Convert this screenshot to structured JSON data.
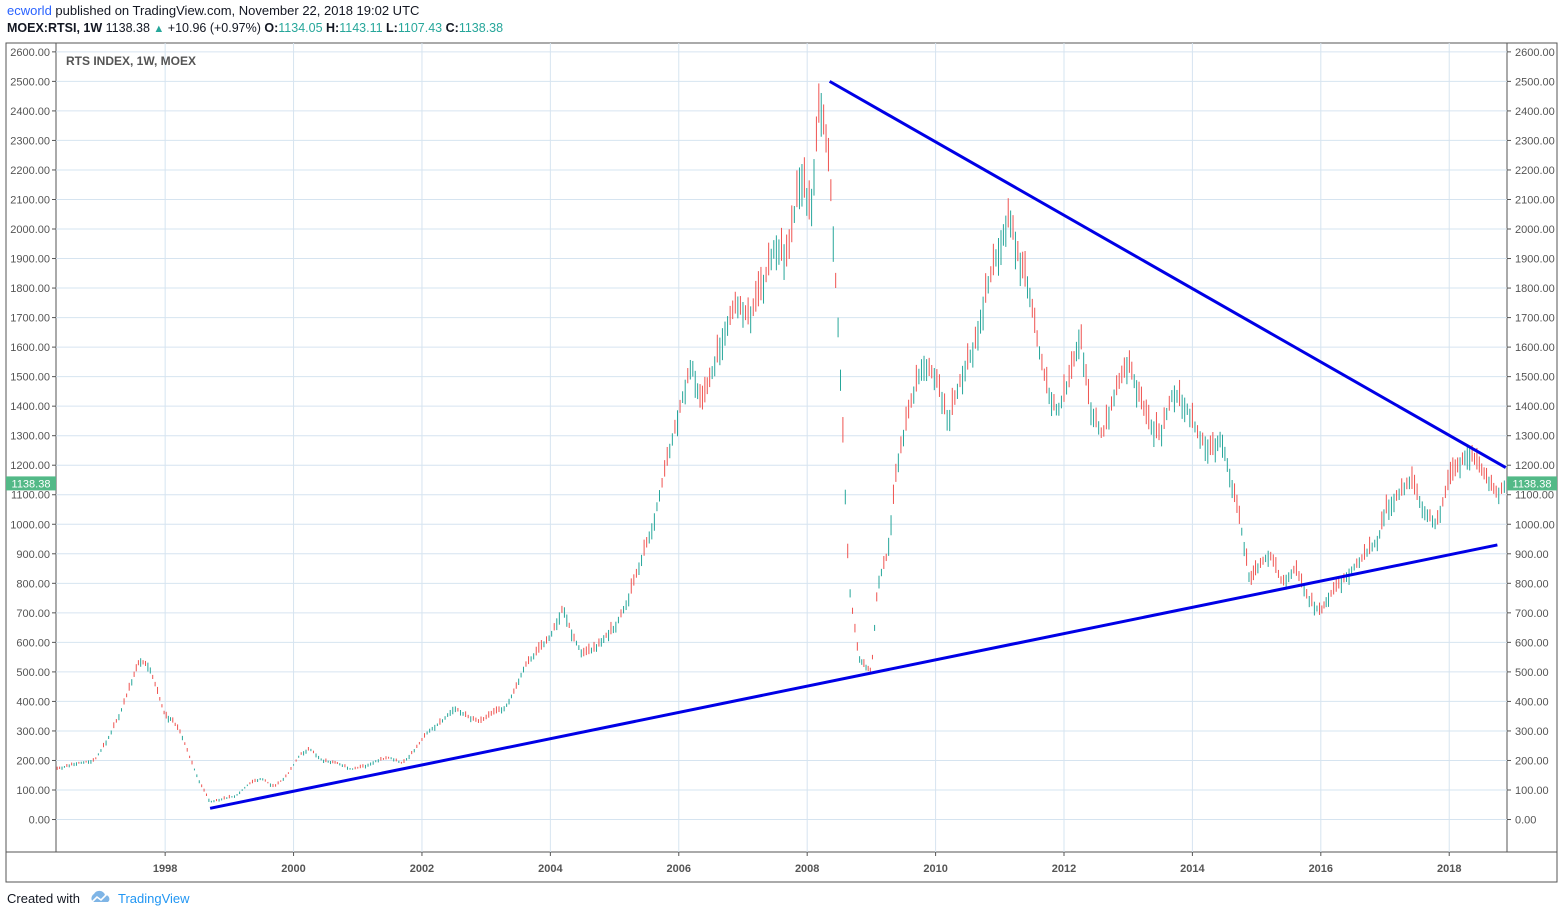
{
  "header": {
    "author": "ecworld",
    "published": "published on TradingView.com, November 22, 2018 19:02 UTC",
    "symbol": "MOEX:RTSI, 1W",
    "last": "1138.38",
    "change": "+10.96 (+0.97%)",
    "o_label": "O:",
    "o_value": "1134.05",
    "h_label": "H:",
    "h_value": "1143.11",
    "l_label": "L:",
    "l_value": "1107.43",
    "c_label": "C:",
    "c_value": "1138.38"
  },
  "footer": {
    "created": "Created with",
    "brand": "TradingView"
  },
  "colors": {
    "up": "#26a69a",
    "down": "#ef5350",
    "trendline": "#0000e6",
    "grid": "#d6e4f0",
    "price_badge": "#53b987"
  },
  "chart_data": {
    "type": "line",
    "title": "RTS INDEX, 1W, MOEX",
    "xlabel": "",
    "ylabel": "",
    "x_ticks": [
      "1998",
      "2000",
      "2002",
      "2004",
      "2006",
      "2008",
      "2010",
      "2012",
      "2014",
      "2016",
      "2018"
    ],
    "y_ticks": [
      "0.00",
      "100.00",
      "200.00",
      "300.00",
      "400.00",
      "500.00",
      "600.00",
      "700.00",
      "800.00",
      "900.00",
      "1000.00",
      "1100.00",
      "1200.00",
      "1300.00",
      "1400.00",
      "1500.00",
      "1600.00",
      "1700.00",
      "1800.00",
      "1900.00",
      "2000.00",
      "2100.00",
      "2200.00",
      "2300.00",
      "2400.00",
      "2500.00",
      "2600.00"
    ],
    "ylim": [
      -110,
      2630
    ],
    "xlim": [
      1996.3,
      2018.9
    ],
    "last_price_label": "1138.38",
    "series": [
      {
        "x": [
          1996.3,
          1996.6,
          1996.9,
          1997.1,
          1997.3,
          1997.5,
          1997.6,
          1997.75,
          1997.9,
          1998.0,
          1998.1,
          1998.25,
          1998.4,
          1998.55,
          1998.7,
          1998.9,
          1999.1,
          1999.3,
          1999.5,
          1999.7,
          1999.9,
          2000.1,
          2000.25,
          2000.45,
          2000.7,
          2000.9,
          2001.1,
          2001.3,
          2001.5,
          2001.7,
          2001.9,
          2002.1,
          2002.3,
          2002.5,
          2002.7,
          2002.9,
          2003.1,
          2003.3,
          2003.45,
          2003.6,
          2003.8,
          2004.0,
          2004.2,
          2004.35,
          2004.5,
          2004.7,
          2004.85,
          2005.0,
          2005.2,
          2005.4,
          2005.6,
          2005.8,
          2006.0,
          2006.2,
          2006.35,
          2006.5,
          2006.7,
          2006.9,
          2007.1,
          2007.3,
          2007.5,
          2007.7,
          2007.9,
          2008.05,
          2008.2,
          2008.35,
          2008.5,
          2008.65,
          2008.8,
          2008.9,
          2009.0,
          2009.1,
          2009.25,
          2009.4,
          2009.6,
          2009.8,
          2010.0,
          2010.2,
          2010.4,
          2010.6,
          2010.8,
          2011.0,
          2011.15,
          2011.3,
          2011.45,
          2011.6,
          2011.75,
          2011.9,
          2012.1,
          2012.25,
          2012.4,
          2012.6,
          2012.8,
          2013.0,
          2013.15,
          2013.3,
          2013.5,
          2013.7,
          2013.9,
          2014.1,
          2014.3,
          2014.45,
          2014.6,
          2014.75,
          2014.9,
          2015.0,
          2015.2,
          2015.4,
          2015.6,
          2015.8,
          2016.0,
          2016.1,
          2016.3,
          2016.5,
          2016.7,
          2016.9,
          2017.0,
          2017.2,
          2017.4,
          2017.6,
          2017.8,
          2018.0,
          2018.15,
          2018.3,
          2018.45,
          2018.6,
          2018.75,
          2018.88
        ],
        "y": [
          170,
          190,
          200,
          270,
          360,
          480,
          540,
          520,
          420,
          350,
          340,
          290,
          200,
          120,
          60,
          70,
          80,
          120,
          140,
          110,
          150,
          220,
          240,
          200,
          190,
          170,
          180,
          200,
          210,
          190,
          240,
          300,
          330,
          380,
          350,
          330,
          360,
          380,
          440,
          520,
          570,
          620,
          720,
          620,
          560,
          580,
          620,
          650,
          740,
          870,
          1000,
          1200,
          1380,
          1550,
          1400,
          1500,
          1650,
          1750,
          1700,
          1800,
          1950,
          1900,
          2200,
          2050,
          2450,
          2200,
          1600,
          800,
          550,
          520,
          500,
          800,
          900,
          1200,
          1400,
          1550,
          1500,
          1350,
          1500,
          1600,
          1800,
          1950,
          2050,
          1900,
          1800,
          1600,
          1450,
          1380,
          1500,
          1650,
          1400,
          1300,
          1450,
          1550,
          1450,
          1350,
          1300,
          1450,
          1400,
          1300,
          1250,
          1300,
          1150,
          1000,
          800,
          850,
          900,
          800,
          850,
          750,
          700,
          750,
          800,
          850,
          900,
          950,
          1050,
          1100,
          1150,
          1050,
          1000,
          1150,
          1200,
          1250,
          1200,
          1150,
          1100,
          1138
        ]
      }
    ],
    "annotations": [
      {
        "type": "trendline",
        "from": [
          1998.7,
          38
        ],
        "to": [
          2018.75,
          930
        ]
      },
      {
        "type": "trendline",
        "from": [
          2008.35,
          2500
        ],
        "to": [
          2018.88,
          1192
        ]
      }
    ]
  }
}
